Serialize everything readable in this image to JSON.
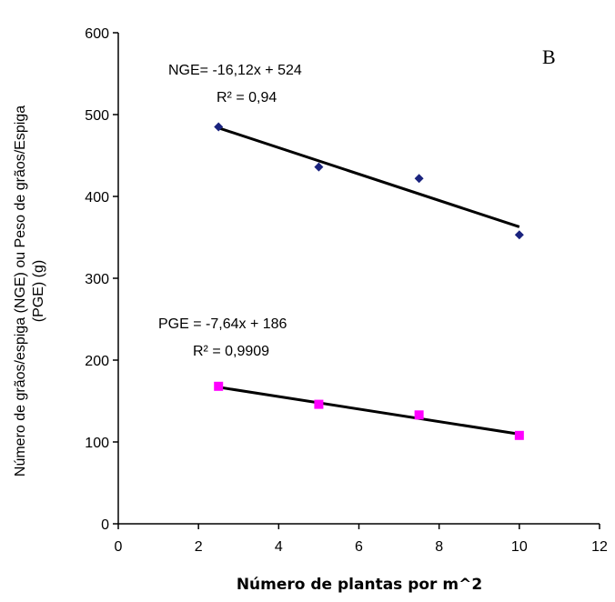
{
  "chart_data": {
    "type": "scatter",
    "panel_label": "B",
    "xlabel": "Número de plantas por m^2",
    "ylabel_line1": "Número de grãos/espiga (NGE) ou Peso de grãos/Espiga",
    "ylabel_line2": "(PGE) (g)",
    "xlim": [
      0,
      12
    ],
    "ylim": [
      0,
      600
    ],
    "x_ticks": [
      "0",
      "2",
      "4",
      "6",
      "8",
      "10",
      "12"
    ],
    "y_ticks": [
      "0",
      "100",
      "200",
      "300",
      "400",
      "500",
      "600"
    ],
    "grid": false,
    "series": [
      {
        "name": "NGE",
        "color": "#1a237e",
        "marker": "diamond",
        "x": [
          2.5,
          5,
          7.5,
          10
        ],
        "y": [
          485,
          436,
          422,
          353
        ],
        "trendline": {
          "slope": -16.12,
          "intercept": 524
        },
        "equation": "NGE= -16,12x + 524",
        "r2_label": "R² = 0,94"
      },
      {
        "name": "PGE",
        "color": "#ff00ff",
        "marker": "square",
        "x": [
          2.5,
          5,
          7.5,
          10
        ],
        "y": [
          168,
          146,
          133,
          108
        ],
        "trendline": {
          "slope": -7.64,
          "intercept": 186
        },
        "equation": "PGE = -7,64x + 186",
        "r2_label": "R² = 0,9909"
      }
    ]
  }
}
